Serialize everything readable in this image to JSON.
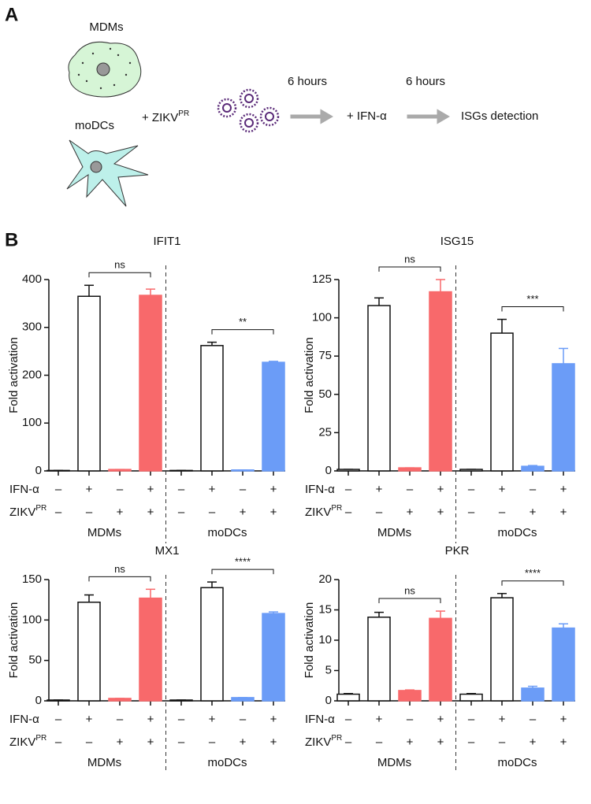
{
  "panels": [
    "A",
    "B"
  ],
  "schematic": {
    "cells": [
      "MDMs",
      "moDCs"
    ],
    "infection": "+ ZIKV",
    "infection_superscript": "PR",
    "steps": [
      {
        "time": "6 hours",
        "label": "+ IFN-α"
      },
      {
        "time": "6 hours",
        "label": "ISGs detection"
      }
    ]
  },
  "chart_data": [
    {
      "type": "bar",
      "title": "IFIT1",
      "ylabel": "Fold activation",
      "ylim": [
        0,
        400
      ],
      "yticks": [
        0,
        100,
        200,
        300,
        400
      ],
      "values": [
        1,
        365,
        3,
        367,
        1,
        262,
        2,
        227
      ],
      "errors": [
        0,
        23,
        0,
        13,
        0,
        7,
        0,
        2
      ],
      "colors": [
        "#ffffff",
        "#ffffff",
        "#f8696b",
        "#f8696b",
        "#ffffff",
        "#ffffff",
        "#6b9cf7",
        "#6b9cf7"
      ],
      "conditions": [
        {
          "name": "IFN-α",
          "marks": [
            "–",
            "+",
            "–",
            "+",
            "–",
            "+",
            "–",
            "+"
          ]
        },
        {
          "name": "ZIKV",
          "superscript": "PR",
          "marks": [
            "–",
            "–",
            "+",
            "+",
            "–",
            "–",
            "+",
            "+"
          ]
        }
      ],
      "groups": [
        "MDMs",
        "moDCs"
      ],
      "significance": [
        {
          "label": "ns",
          "between": [
            1,
            3
          ]
        },
        {
          "label": "**",
          "between": [
            5,
            7
          ]
        }
      ]
    },
    {
      "type": "bar",
      "title": "ISG15",
      "ylabel": "Fold activation",
      "ylim": [
        0,
        125
      ],
      "yticks": [
        0,
        25,
        50,
        75,
        100,
        125
      ],
      "values": [
        1,
        108,
        2,
        117,
        1,
        90,
        3,
        70
      ],
      "errors": [
        0,
        5,
        0,
        8,
        0,
        9,
        0.5,
        10
      ],
      "colors": [
        "#ffffff",
        "#ffffff",
        "#f8696b",
        "#f8696b",
        "#ffffff",
        "#ffffff",
        "#6b9cf7",
        "#6b9cf7"
      ],
      "conditions": [
        {
          "name": "IFN-α",
          "marks": [
            "–",
            "+",
            "–",
            "+",
            "–",
            "+",
            "–",
            "+"
          ]
        },
        {
          "name": "ZIKV",
          "superscript": "PR",
          "marks": [
            "–",
            "–",
            "+",
            "+",
            "–",
            "–",
            "+",
            "+"
          ]
        }
      ],
      "groups": [
        "MDMs",
        "moDCs"
      ],
      "significance": [
        {
          "label": "ns",
          "between": [
            1,
            3
          ]
        },
        {
          "label": "***",
          "between": [
            5,
            7
          ]
        }
      ]
    },
    {
      "type": "bar",
      "title": "MX1",
      "ylabel": "Fold activation",
      "ylim": [
        0,
        150
      ],
      "yticks": [
        0,
        50,
        100,
        150
      ],
      "values": [
        1,
        122,
        3,
        127,
        1,
        140,
        4,
        108
      ],
      "errors": [
        0,
        9,
        0,
        11,
        0,
        7,
        0,
        2
      ],
      "colors": [
        "#ffffff",
        "#ffffff",
        "#f8696b",
        "#f8696b",
        "#ffffff",
        "#ffffff",
        "#6b9cf7",
        "#6b9cf7"
      ],
      "conditions": [
        {
          "name": "IFN-α",
          "marks": [
            "–",
            "+",
            "–",
            "+",
            "–",
            "+",
            "–",
            "+"
          ]
        },
        {
          "name": "ZIKV",
          "superscript": "PR",
          "marks": [
            "–",
            "–",
            "+",
            "+",
            "–",
            "–",
            "+",
            "+"
          ]
        }
      ],
      "groups": [
        "MDMs",
        "moDCs"
      ],
      "significance": [
        {
          "label": "ns",
          "between": [
            1,
            3
          ]
        },
        {
          "label": "****",
          "between": [
            5,
            7
          ]
        }
      ]
    },
    {
      "type": "bar",
      "title": "PKR",
      "ylabel": "Fold activation",
      "ylim": [
        0,
        20
      ],
      "yticks": [
        0,
        5,
        10,
        15,
        20
      ],
      "values": [
        1.1,
        13.8,
        1.7,
        13.6,
        1.1,
        17,
        2.1,
        12
      ],
      "errors": [
        0.1,
        0.8,
        0.1,
        1.2,
        0.1,
        0.7,
        0.3,
        0.7
      ],
      "colors": [
        "#ffffff",
        "#ffffff",
        "#f8696b",
        "#f8696b",
        "#ffffff",
        "#ffffff",
        "#6b9cf7",
        "#6b9cf7"
      ],
      "conditions": [
        {
          "name": "IFN-α",
          "marks": [
            "–",
            "+",
            "–",
            "+",
            "–",
            "+",
            "–",
            "+"
          ]
        },
        {
          "name": "ZIKV",
          "superscript": "PR",
          "marks": [
            "–",
            "–",
            "+",
            "+",
            "–",
            "–",
            "+",
            "+"
          ]
        }
      ],
      "groups": [
        "MDMs",
        "moDCs"
      ],
      "significance": [
        {
          "label": "ns",
          "between": [
            1,
            3
          ]
        },
        {
          "label": "****",
          "between": [
            5,
            7
          ]
        }
      ]
    }
  ]
}
